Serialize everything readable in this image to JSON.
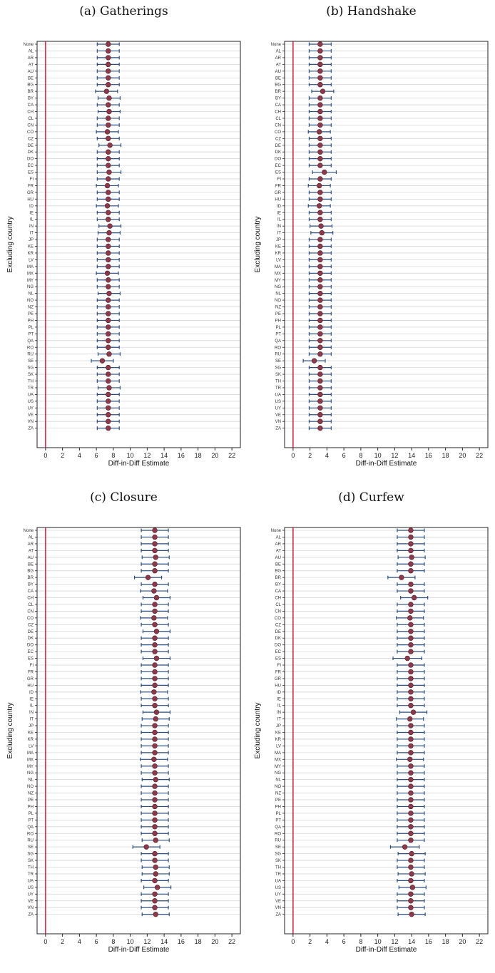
{
  "categories": [
    "None",
    "AL",
    "AR",
    "AT",
    "AU",
    "BE",
    "BG",
    "BR",
    "BY",
    "CA",
    "CH",
    "CL",
    "CN",
    "CO",
    "CZ",
    "DE",
    "DK",
    "DO",
    "EC",
    "ES",
    "FI",
    "FR",
    "GR",
    "HU",
    "ID",
    "IE",
    "IL",
    "IN",
    "IT",
    "JP",
    "KE",
    "KR",
    "LV",
    "MA",
    "MX",
    "MY",
    "NG",
    "NL",
    "NO",
    "NZ",
    "PE",
    "PH",
    "PL",
    "PT",
    "QA",
    "RO",
    "RU",
    "SE",
    "SG",
    "SK",
    "TH",
    "TR",
    "UA",
    "US",
    "UY",
    "VE",
    "VN",
    "ZA"
  ],
  "colors": {
    "point": "#8b3a4a",
    "point_stroke": "#5a1f2c",
    "ci": "#2b4f7e",
    "grid": "#d8d8d8",
    "ref_line": "#c8102e",
    "axis": "#222222"
  },
  "chart_data": [
    {
      "type": "scatter",
      "title": "(a) Gatherings",
      "xlabel": "Diff-in-Diff Estimate",
      "ylabel": "Excluding country",
      "xlim": [
        -1,
        23
      ],
      "xticks": [
        0,
        2,
        4,
        6,
        8,
        10,
        12,
        14,
        16,
        18,
        20,
        22
      ],
      "reference_line_x": 0,
      "values": [
        7.4,
        7.4,
        7.4,
        7.4,
        7.4,
        7.4,
        7.4,
        7.2,
        7.5,
        7.4,
        7.5,
        7.4,
        7.4,
        7.3,
        7.4,
        7.6,
        7.4,
        7.4,
        7.4,
        7.5,
        7.4,
        7.3,
        7.4,
        7.4,
        7.3,
        7.4,
        7.4,
        7.6,
        7.5,
        7.4,
        7.4,
        7.4,
        7.4,
        7.4,
        7.3,
        7.4,
        7.4,
        7.5,
        7.4,
        7.4,
        7.4,
        7.4,
        7.4,
        7.4,
        7.4,
        7.4,
        7.5,
        6.7,
        7.4,
        7.4,
        7.4,
        7.5,
        7.4,
        7.4,
        7.4,
        7.4,
        7.4,
        7.4
      ],
      "ci_low": [
        6.1,
        6.1,
        6.1,
        6.1,
        6.1,
        6.1,
        6.1,
        5.9,
        6.2,
        6.1,
        6.2,
        6.1,
        6.1,
        6.0,
        6.1,
        6.3,
        6.1,
        6.1,
        6.1,
        6.1,
        6.1,
        6.0,
        6.1,
        6.1,
        6.0,
        6.1,
        6.1,
        6.3,
        6.2,
        6.1,
        6.1,
        6.1,
        6.1,
        6.1,
        6.0,
        6.1,
        6.1,
        6.2,
        6.1,
        6.1,
        6.1,
        6.1,
        6.1,
        6.1,
        6.1,
        6.1,
        6.2,
        5.4,
        6.1,
        6.1,
        6.1,
        6.2,
        6.1,
        6.1,
        6.1,
        6.1,
        6.1,
        6.1
      ],
      "ci_high": [
        8.7,
        8.7,
        8.7,
        8.7,
        8.7,
        8.7,
        8.7,
        8.5,
        8.8,
        8.7,
        8.8,
        8.7,
        8.7,
        8.6,
        8.7,
        8.9,
        8.7,
        8.7,
        8.7,
        8.9,
        8.7,
        8.6,
        8.7,
        8.7,
        8.6,
        8.7,
        8.7,
        8.9,
        8.8,
        8.7,
        8.7,
        8.7,
        8.7,
        8.7,
        8.6,
        8.7,
        8.7,
        8.8,
        8.7,
        8.7,
        8.7,
        8.7,
        8.7,
        8.7,
        8.7,
        8.7,
        8.8,
        8.0,
        8.7,
        8.7,
        8.7,
        8.8,
        8.7,
        8.7,
        8.7,
        8.7,
        8.7,
        8.7
      ]
    },
    {
      "type": "scatter",
      "title": "(b) Handshake",
      "xlabel": "Diff-in-Diff Estimate",
      "ylabel": "Excluding country",
      "xlim": [
        -1,
        23
      ],
      "xticks": [
        0,
        2,
        4,
        6,
        8,
        10,
        12,
        14,
        16,
        18,
        20,
        22
      ],
      "reference_line_x": 0,
      "values": [
        3.2,
        3.2,
        3.2,
        3.2,
        3.2,
        3.2,
        3.2,
        3.5,
        3.2,
        3.2,
        3.2,
        3.2,
        3.2,
        3.1,
        3.2,
        3.2,
        3.2,
        3.2,
        3.2,
        3.7,
        3.2,
        3.1,
        3.2,
        3.2,
        3.1,
        3.2,
        3.2,
        3.3,
        3.4,
        3.2,
        3.2,
        3.2,
        3.2,
        3.2,
        3.2,
        3.2,
        3.2,
        3.2,
        3.2,
        3.2,
        3.2,
        3.2,
        3.2,
        3.2,
        3.2,
        3.2,
        3.2,
        2.5,
        3.2,
        3.2,
        3.2,
        3.2,
        3.2,
        3.2,
        3.2,
        3.2,
        3.2,
        3.2
      ],
      "ci_low": [
        1.9,
        1.9,
        1.9,
        1.9,
        1.9,
        1.9,
        1.9,
        2.2,
        1.9,
        1.9,
        1.9,
        1.9,
        1.9,
        1.8,
        1.9,
        1.9,
        1.9,
        1.9,
        1.9,
        2.3,
        1.9,
        1.8,
        1.9,
        1.9,
        1.8,
        1.9,
        1.9,
        2.0,
        2.1,
        1.9,
        1.9,
        1.9,
        1.9,
        1.9,
        1.9,
        1.9,
        1.9,
        1.9,
        1.9,
        1.9,
        1.9,
        1.9,
        1.9,
        1.9,
        1.9,
        1.9,
        1.9,
        1.2,
        1.9,
        1.9,
        1.9,
        1.9,
        1.9,
        1.9,
        1.9,
        1.9,
        1.9,
        1.9
      ],
      "ci_high": [
        4.5,
        4.5,
        4.5,
        4.5,
        4.5,
        4.5,
        4.5,
        4.8,
        4.5,
        4.5,
        4.5,
        4.5,
        4.5,
        4.4,
        4.5,
        4.5,
        4.5,
        4.5,
        4.5,
        5.1,
        4.5,
        4.4,
        4.5,
        4.5,
        4.4,
        4.5,
        4.5,
        4.6,
        4.7,
        4.5,
        4.5,
        4.5,
        4.5,
        4.5,
        4.5,
        4.5,
        4.5,
        4.5,
        4.5,
        4.5,
        4.5,
        4.5,
        4.5,
        4.5,
        4.5,
        4.5,
        4.5,
        3.8,
        4.5,
        4.5,
        4.5,
        4.5,
        4.5,
        4.5,
        4.5,
        4.5,
        4.5,
        4.5
      ]
    },
    {
      "type": "scatter",
      "title": "(c) Closure",
      "xlabel": "Diff-in-Diff Estimate",
      "ylabel": "Excluding country",
      "xlim": [
        -1,
        23
      ],
      "xticks": [
        0,
        2,
        4,
        6,
        8,
        10,
        12,
        14,
        16,
        18,
        20,
        22
      ],
      "reference_line_x": 0,
      "values": [
        12.9,
        12.9,
        12.9,
        12.9,
        13.0,
        12.9,
        12.9,
        12.1,
        12.9,
        12.8,
        13.1,
        12.9,
        12.9,
        12.8,
        12.9,
        13.1,
        12.9,
        12.9,
        12.9,
        13.1,
        12.9,
        12.9,
        12.9,
        12.9,
        12.8,
        12.9,
        12.9,
        13.1,
        13.0,
        12.9,
        12.9,
        12.9,
        12.9,
        12.9,
        12.8,
        12.9,
        12.9,
        13.0,
        12.9,
        12.9,
        12.9,
        12.9,
        12.9,
        12.9,
        12.9,
        12.9,
        13.0,
        11.9,
        12.9,
        12.9,
        13.0,
        13.0,
        12.9,
        13.2,
        12.9,
        12.9,
        12.9,
        13.0
      ],
      "ci_low": [
        11.3,
        11.3,
        11.3,
        11.3,
        11.4,
        11.3,
        11.3,
        10.5,
        11.3,
        11.2,
        11.5,
        11.3,
        11.3,
        11.2,
        11.3,
        11.5,
        11.3,
        11.3,
        11.3,
        11.5,
        11.3,
        11.3,
        11.3,
        11.3,
        11.2,
        11.3,
        11.3,
        11.5,
        11.4,
        11.3,
        11.3,
        11.3,
        11.3,
        11.3,
        11.2,
        11.3,
        11.3,
        11.4,
        11.3,
        11.3,
        11.3,
        11.3,
        11.3,
        11.3,
        11.3,
        11.3,
        11.4,
        10.3,
        11.3,
        11.3,
        11.4,
        11.4,
        11.3,
        11.6,
        11.3,
        11.3,
        11.3,
        11.4
      ],
      "ci_high": [
        14.5,
        14.5,
        14.5,
        14.5,
        14.6,
        14.5,
        14.5,
        13.7,
        14.5,
        14.4,
        14.7,
        14.5,
        14.5,
        14.4,
        14.5,
        14.7,
        14.5,
        14.5,
        14.5,
        14.7,
        14.5,
        14.5,
        14.5,
        14.5,
        14.4,
        14.5,
        14.5,
        14.7,
        14.6,
        14.5,
        14.5,
        14.5,
        14.5,
        14.5,
        14.4,
        14.5,
        14.5,
        14.6,
        14.5,
        14.5,
        14.5,
        14.5,
        14.5,
        14.5,
        14.5,
        14.5,
        14.6,
        13.5,
        14.5,
        14.5,
        14.6,
        14.6,
        14.5,
        14.8,
        14.5,
        14.5,
        14.5,
        14.6
      ]
    },
    {
      "type": "scatter",
      "title": "(d) Curfew",
      "xlabel": "Diff-in-Diff Estimate",
      "ylabel": "Excluding country",
      "xlim": [
        -1,
        23
      ],
      "xticks": [
        0,
        2,
        4,
        6,
        8,
        10,
        12,
        14,
        16,
        18,
        20,
        22
      ],
      "reference_line_x": 0,
      "values": [
        13.9,
        13.9,
        13.9,
        13.9,
        14.0,
        13.9,
        13.9,
        12.8,
        13.9,
        13.9,
        14.3,
        13.9,
        13.9,
        13.8,
        13.9,
        13.9,
        13.9,
        13.9,
        13.9,
        13.5,
        13.9,
        13.9,
        13.9,
        13.9,
        13.9,
        13.9,
        13.9,
        14.2,
        13.8,
        13.9,
        13.9,
        13.9,
        13.9,
        13.9,
        13.8,
        13.9,
        13.9,
        13.9,
        13.9,
        13.9,
        13.9,
        13.9,
        13.9,
        13.9,
        13.9,
        13.9,
        13.9,
        13.2,
        14.0,
        13.9,
        13.9,
        14.0,
        13.9,
        14.1,
        13.9,
        13.9,
        13.9,
        14.0
      ],
      "ci_low": [
        12.3,
        12.3,
        12.3,
        12.3,
        12.4,
        12.3,
        12.3,
        11.2,
        12.3,
        12.3,
        12.7,
        12.3,
        12.3,
        12.2,
        12.3,
        12.3,
        12.3,
        12.3,
        12.3,
        11.8,
        12.3,
        12.3,
        12.3,
        12.3,
        12.3,
        12.3,
        12.3,
        12.6,
        12.2,
        12.3,
        12.3,
        12.3,
        12.3,
        12.3,
        12.2,
        12.3,
        12.3,
        12.3,
        12.3,
        12.3,
        12.3,
        12.3,
        12.3,
        12.3,
        12.3,
        12.3,
        12.3,
        11.5,
        12.4,
        12.3,
        12.3,
        12.4,
        12.3,
        12.5,
        12.3,
        12.3,
        12.3,
        12.4
      ],
      "ci_high": [
        15.5,
        15.5,
        15.5,
        15.5,
        15.6,
        15.5,
        15.5,
        14.4,
        15.5,
        15.5,
        15.9,
        15.5,
        15.5,
        15.4,
        15.5,
        15.5,
        15.5,
        15.5,
        15.5,
        15.2,
        15.5,
        15.5,
        15.5,
        15.5,
        15.5,
        15.5,
        15.5,
        15.8,
        15.4,
        15.5,
        15.5,
        15.5,
        15.5,
        15.5,
        15.4,
        15.5,
        15.5,
        15.5,
        15.5,
        15.5,
        15.5,
        15.5,
        15.5,
        15.5,
        15.5,
        15.5,
        15.5,
        14.9,
        15.6,
        15.5,
        15.5,
        15.6,
        15.5,
        15.7,
        15.5,
        15.5,
        15.5,
        15.6
      ]
    }
  ]
}
